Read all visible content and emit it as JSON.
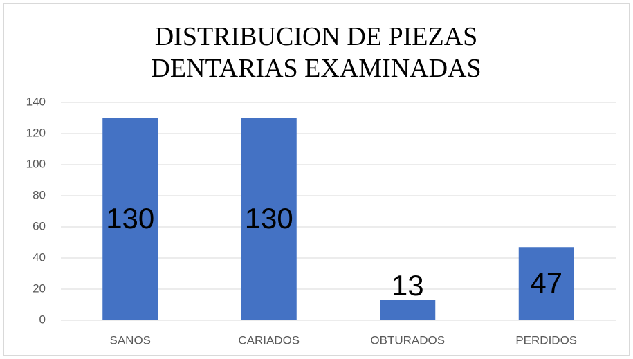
{
  "chart_data": {
    "type": "bar",
    "title": "DISTRIBUCION DE PIEZAS DENTARIAS EXAMINADAS",
    "categories": [
      "SANOS",
      "CARIADOS",
      "OBTURADOS",
      "PERDIDOS"
    ],
    "values": [
      130,
      130,
      13,
      47
    ],
    "color": "#4472c4",
    "ylim": [
      0,
      140
    ],
    "yticks": [
      0,
      20,
      40,
      60,
      80,
      100,
      120,
      140
    ],
    "grid": true
  }
}
